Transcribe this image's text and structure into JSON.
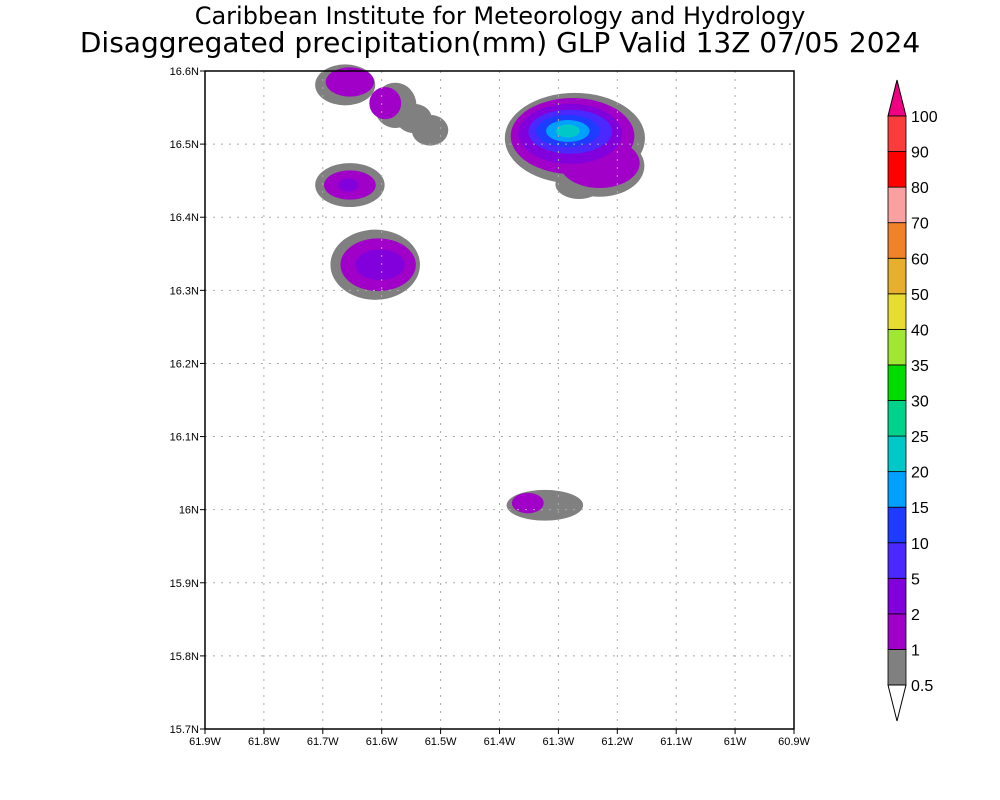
{
  "title_line1": "Caribbean Institute for Meteorology and Hydrology",
  "title_line2": "Disaggregated precipitation(mm) GLP Valid 13Z 07/05 2024",
  "chart_data": {
    "type": "heatmap",
    "subtype": "filled-contour map",
    "lon_range": [
      -61.9,
      -60.9
    ],
    "lat_range": [
      15.7,
      16.6
    ],
    "lon_ticks": [
      "61.9W",
      "61.8W",
      "61.7W",
      "61.6W",
      "61.5W",
      "61.4W",
      "61.3W",
      "61.2W",
      "61.1W",
      "61W",
      "60.9W"
    ],
    "lat_ticks": [
      "15.7N",
      "15.8N",
      "15.9N",
      "16N",
      "16.1N",
      "16.2N",
      "16.3N",
      "16.4N",
      "16.5N",
      "16.6N"
    ],
    "lon_tick_values": [
      -61.9,
      -61.8,
      -61.7,
      -61.6,
      -61.5,
      -61.4,
      -61.3,
      -61.2,
      -61.1,
      -61.0,
      -60.9
    ],
    "lat_tick_values": [
      15.7,
      15.8,
      15.9,
      16.0,
      16.1,
      16.2,
      16.3,
      16.4,
      16.5,
      16.6
    ],
    "grid": true,
    "legend": {
      "placement": "right",
      "labels": [
        "0.5",
        "1",
        "2",
        "5",
        "10",
        "15",
        "20",
        "25",
        "30",
        "35",
        "40",
        "50",
        "60",
        "70",
        "80",
        "90",
        "100"
      ],
      "colors": [
        "#808080",
        "#a000c8",
        "#8200dc",
        "#4b28ff",
        "#1e3cff",
        "#00a0ff",
        "#00c8c8",
        "#00d28c",
        "#00dc00",
        "#a0e632",
        "#e6dc32",
        "#e6af2d",
        "#f08228",
        "#faa0a0",
        "#ff0000",
        "#fa3c3c"
      ],
      "over_color": "#f00082",
      "under_color": "#ffffff"
    },
    "cells": [
      {
        "level": 0,
        "lon": -61.662,
        "lat": 16.581,
        "rlon": 0.051,
        "rlat": 0.028
      },
      {
        "level": 0,
        "lon": -61.577,
        "lat": 16.553,
        "rlon": 0.036,
        "rlat": 0.031
      },
      {
        "level": 0,
        "lon": -61.518,
        "lat": 16.519,
        "rlon": 0.031,
        "rlat": 0.021
      },
      {
        "level": 0,
        "lon": -61.545,
        "lat": 16.535,
        "rlon": 0.03,
        "rlat": 0.02
      },
      {
        "level": 1,
        "lon": -61.654,
        "lat": 16.585,
        "rlon": 0.041,
        "rlat": 0.02
      },
      {
        "level": 1,
        "lon": -61.594,
        "lat": 16.556,
        "rlon": 0.027,
        "rlat": 0.022
      },
      {
        "level": 0,
        "lon": -61.654,
        "lat": 16.444,
        "rlon": 0.059,
        "rlat": 0.03
      },
      {
        "level": 1,
        "lon": -61.654,
        "lat": 16.444,
        "rlon": 0.044,
        "rlat": 0.02
      },
      {
        "level": 2,
        "lon": -61.657,
        "lat": 16.444,
        "rlon": 0.017,
        "rlat": 0.009
      },
      {
        "level": 0,
        "lon": -61.611,
        "lat": 16.335,
        "rlon": 0.076,
        "rlat": 0.048
      },
      {
        "level": 1,
        "lon": -61.606,
        "lat": 16.335,
        "rlon": 0.064,
        "rlat": 0.036
      },
      {
        "level": 2,
        "lon": -61.603,
        "lat": 16.335,
        "rlon": 0.042,
        "rlat": 0.021
      },
      {
        "level": 0,
        "lon": -61.272,
        "lat": 16.508,
        "rlon": 0.119,
        "rlat": 0.062
      },
      {
        "level": 0,
        "lon": -61.23,
        "lat": 16.47,
        "rlon": 0.076,
        "rlat": 0.042
      },
      {
        "level": 0,
        "lon": -61.265,
        "lat": 16.445,
        "rlon": 0.04,
        "rlat": 0.02
      },
      {
        "level": 1,
        "lon": -61.276,
        "lat": 16.511,
        "rlon": 0.105,
        "rlat": 0.052
      },
      {
        "level": 1,
        "lon": -61.23,
        "lat": 16.474,
        "rlon": 0.068,
        "rlat": 0.034
      },
      {
        "level": 2,
        "lon": -61.28,
        "lat": 16.514,
        "rlon": 0.088,
        "rlat": 0.041
      },
      {
        "level": 3,
        "lon": -61.28,
        "lat": 16.517,
        "rlon": 0.071,
        "rlat": 0.03
      },
      {
        "level": 4,
        "lon": -61.284,
        "lat": 16.518,
        "rlon": 0.054,
        "rlat": 0.022
      },
      {
        "level": 5,
        "lon": -61.284,
        "lat": 16.518,
        "rlon": 0.037,
        "rlat": 0.015
      },
      {
        "level": 6,
        "lon": -61.284,
        "lat": 16.518,
        "rlon": 0.02,
        "rlat": 0.009
      },
      {
        "level": 0,
        "lon": -61.323,
        "lat": 16.006,
        "rlon": 0.065,
        "rlat": 0.021
      },
      {
        "level": 1,
        "lon": -61.352,
        "lat": 16.009,
        "rlon": 0.027,
        "rlat": 0.014
      }
    ]
  }
}
